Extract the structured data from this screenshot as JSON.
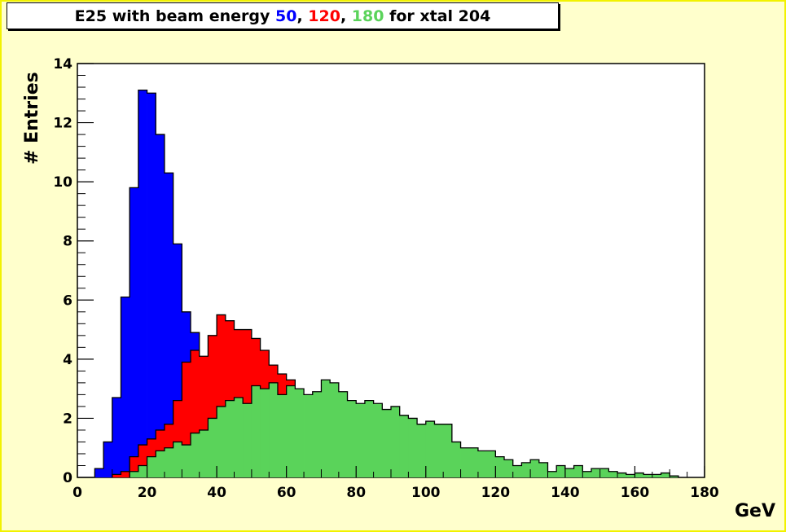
{
  "chart_data": {
    "type": "bar",
    "title_parts": [
      {
        "text": "E25 with beam energy ",
        "color": "#000000"
      },
      {
        "text": "50",
        "color": "#0000ff"
      },
      {
        "text": ", ",
        "color": "#000000"
      },
      {
        "text": "120",
        "color": "#ff0000"
      },
      {
        "text": ", ",
        "color": "#000000"
      },
      {
        "text": "180",
        "color": "#5ad35a"
      },
      {
        "text": " for xtal 204",
        "color": "#000000"
      }
    ],
    "xlabel": "GeV",
    "ylabel": "# Entries",
    "xlim": [
      0,
      180
    ],
    "ylim": [
      0,
      14
    ],
    "x_ticks": [
      0,
      20,
      40,
      60,
      80,
      100,
      120,
      140,
      160,
      180
    ],
    "y_ticks": [
      0,
      2,
      4,
      6,
      8,
      10,
      12,
      14
    ],
    "bin_width": 2.5,
    "grid": false,
    "series": [
      {
        "name": "50",
        "color": "#0000ff",
        "bins": [
          [
            5,
            0.3
          ],
          [
            7.5,
            1.2
          ],
          [
            10,
            2.7
          ],
          [
            12.5,
            6.1
          ],
          [
            15,
            9.8
          ],
          [
            17.5,
            13.1
          ],
          [
            20,
            13.0
          ],
          [
            22.5,
            11.6
          ],
          [
            25,
            10.3
          ],
          [
            27.5,
            7.9
          ],
          [
            30,
            5.6
          ],
          [
            32.5,
            4.9
          ],
          [
            35,
            1.0
          ],
          [
            37.5,
            0.5
          ],
          [
            40,
            0.2
          ]
        ]
      },
      {
        "name": "120",
        "color": "#ff0000",
        "bins": [
          [
            10,
            0.1
          ],
          [
            12.5,
            0.2
          ],
          [
            15,
            0.7
          ],
          [
            17.5,
            1.1
          ],
          [
            20,
            1.3
          ],
          [
            22.5,
            1.6
          ],
          [
            25,
            1.8
          ],
          [
            27.5,
            2.6
          ],
          [
            30,
            3.9
          ],
          [
            32.5,
            4.3
          ],
          [
            35,
            4.1
          ],
          [
            37.5,
            4.8
          ],
          [
            40,
            5.5
          ],
          [
            42.5,
            5.3
          ],
          [
            45,
            5.0
          ],
          [
            47.5,
            5.0
          ],
          [
            50,
            4.7
          ],
          [
            52.5,
            4.3
          ],
          [
            55,
            3.8
          ],
          [
            57.5,
            3.5
          ],
          [
            60,
            3.3
          ]
        ]
      },
      {
        "name": "180",
        "color": "#5ad35a",
        "bins": [
          [
            15,
            0.2
          ],
          [
            17.5,
            0.4
          ],
          [
            20,
            0.7
          ],
          [
            22.5,
            0.9
          ],
          [
            25,
            1.0
          ],
          [
            27.5,
            1.2
          ],
          [
            30,
            1.1
          ],
          [
            32.5,
            1.5
          ],
          [
            35,
            1.6
          ],
          [
            37.5,
            2.0
          ],
          [
            40,
            2.4
          ],
          [
            42.5,
            2.6
          ],
          [
            45,
            2.7
          ],
          [
            47.5,
            2.5
          ],
          [
            50,
            3.1
          ],
          [
            52.5,
            3.0
          ],
          [
            55,
            3.2
          ],
          [
            57.5,
            2.8
          ],
          [
            60,
            3.1
          ],
          [
            62.5,
            3.0
          ],
          [
            65,
            2.8
          ],
          [
            67.5,
            2.9
          ],
          [
            70,
            3.3
          ],
          [
            72.5,
            3.2
          ],
          [
            75,
            2.9
          ],
          [
            77.5,
            2.6
          ],
          [
            80,
            2.5
          ],
          [
            82.5,
            2.6
          ],
          [
            85,
            2.5
          ],
          [
            87.5,
            2.3
          ],
          [
            90,
            2.4
          ],
          [
            92.5,
            2.1
          ],
          [
            95,
            2.0
          ],
          [
            97.5,
            1.8
          ],
          [
            100,
            1.9
          ],
          [
            102.5,
            1.8
          ],
          [
            105,
            1.8
          ],
          [
            107.5,
            1.2
          ],
          [
            110,
            1.0
          ],
          [
            112.5,
            1.0
          ],
          [
            115,
            0.9
          ],
          [
            117.5,
            0.9
          ],
          [
            120,
            0.7
          ],
          [
            122.5,
            0.6
          ],
          [
            125,
            0.4
          ],
          [
            127.5,
            0.5
          ],
          [
            130,
            0.6
          ],
          [
            132.5,
            0.5
          ],
          [
            135,
            0.2
          ],
          [
            137.5,
            0.4
          ],
          [
            140,
            0.3
          ],
          [
            142.5,
            0.4
          ],
          [
            145,
            0.2
          ],
          [
            147.5,
            0.3
          ],
          [
            150,
            0.3
          ],
          [
            152.5,
            0.2
          ],
          [
            155,
            0.15
          ],
          [
            157.5,
            0.1
          ],
          [
            160,
            0.15
          ],
          [
            162.5,
            0.1
          ],
          [
            165,
            0.1
          ],
          [
            167.5,
            0.15
          ],
          [
            170,
            0.05
          ]
        ]
      }
    ]
  }
}
